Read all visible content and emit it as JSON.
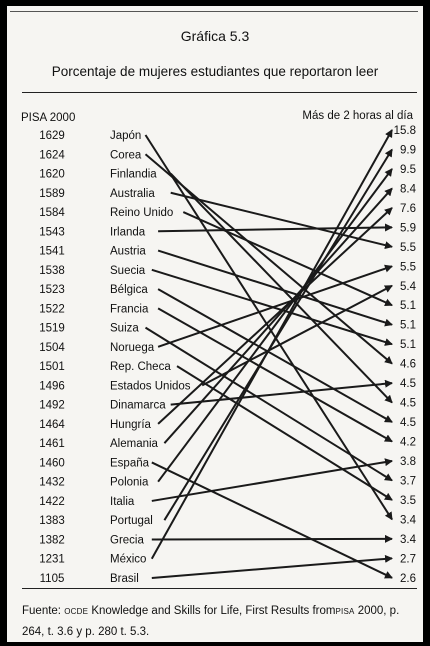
{
  "figure": {
    "title": "Gráfica 5.3",
    "subtitle": "Porcentaje de mujeres estudiantes que reportaron leer",
    "left_header": "PISA 2000",
    "right_header": "Más de 2 horas al día",
    "source": {
      "prefix": "Fuente: ",
      "org": "OCDE",
      "middle": " Knowledge and Skills for Life, First Results from",
      "pisa": "PISA",
      "rest": " 2000, p. 264, t. 3.6 y p. 280 t. 5.3."
    }
  },
  "chart_data": {
    "type": "slope",
    "title": "Gráfica 5.3",
    "subtitle": "Porcentaje de mujeres estudiantes que reportaron leer",
    "left_axis": {
      "label": "PISA 2000",
      "entries": [
        {
          "country": "Japón",
          "score": 1629
        },
        {
          "country": "Corea",
          "score": 1624
        },
        {
          "country": "Finlandia",
          "score": 1620
        },
        {
          "country": "Australia",
          "score": 1589
        },
        {
          "country": "Reino Unido",
          "score": 1584
        },
        {
          "country": "Irlanda",
          "score": 1543
        },
        {
          "country": "Austria",
          "score": 1541
        },
        {
          "country": "Suecia",
          "score": 1538
        },
        {
          "country": "Bélgica",
          "score": 1523
        },
        {
          "country": "Francia",
          "score": 1522
        },
        {
          "country": "Suiza",
          "score": 1519
        },
        {
          "country": "Noruega",
          "score": 1504
        },
        {
          "country": "Rep. Checa",
          "score": 1501
        },
        {
          "country": "Estados Unidos",
          "score": 1496
        },
        {
          "country": "Dinamarca",
          "score": 1492
        },
        {
          "country": "Hungría",
          "score": 1464
        },
        {
          "country": "Alemania",
          "score": 1461
        },
        {
          "country": "España",
          "score": 1460
        },
        {
          "country": "Polonia",
          "score": 1432
        },
        {
          "country": "Italia",
          "score": 1422
        },
        {
          "country": "Portugal",
          "score": 1383
        },
        {
          "country": "Grecia",
          "score": 1382
        },
        {
          "country": "México",
          "score": 1231
        },
        {
          "country": "Brasil",
          "score": 1105
        }
      ]
    },
    "right_axis": {
      "label": "Más de 2 horas al día",
      "values": [
        "15.8",
        "9.9",
        "9.5",
        "8.4",
        "7.6",
        "5.9",
        "5.5",
        "5.5",
        "5.4",
        "5.1",
        "5.1",
        "5.1",
        "4.6",
        "4.5",
        "4.5",
        "4.5",
        "4.2",
        "3.8",
        "3.7",
        "3.5",
        "3.4",
        "3.4",
        "2.7",
        "2.6"
      ]
    },
    "connections": [
      [
        0,
        20
      ],
      [
        1,
        12
      ],
      [
        2,
        14
      ],
      [
        3,
        6
      ],
      [
        4,
        9
      ],
      [
        5,
        5
      ],
      [
        6,
        10
      ],
      [
        7,
        11
      ],
      [
        8,
        15
      ],
      [
        9,
        16
      ],
      [
        10,
        18
      ],
      [
        11,
        7
      ],
      [
        12,
        19
      ],
      [
        13,
        8
      ],
      [
        14,
        13
      ],
      [
        15,
        4
      ],
      [
        16,
        3
      ],
      [
        17,
        23
      ],
      [
        18,
        2
      ],
      [
        19,
        17
      ],
      [
        20,
        1
      ],
      [
        21,
        21
      ],
      [
        22,
        0
      ],
      [
        23,
        22
      ]
    ],
    "line_color": "#1a1a1a"
  }
}
